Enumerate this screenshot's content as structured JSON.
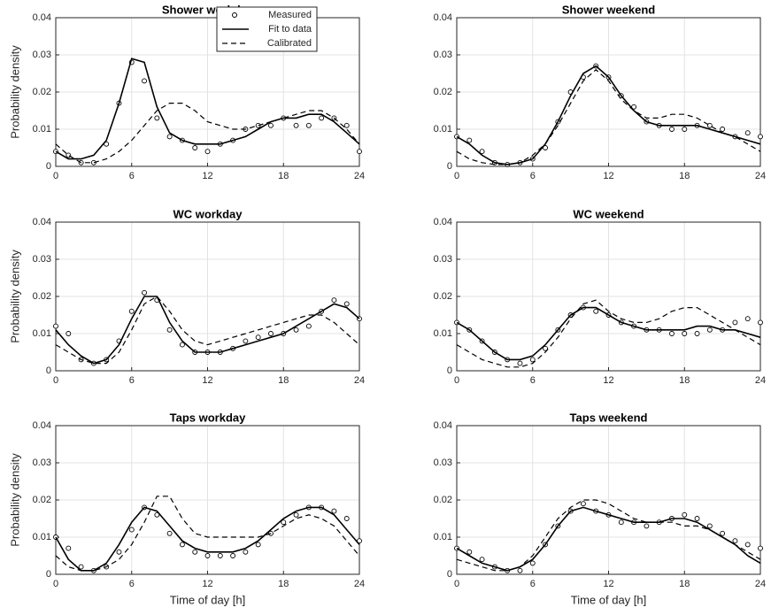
{
  "chart_data": [
    {
      "type": "line",
      "title": "Shower workday",
      "ylabel": "Probability density",
      "legend": "northeast",
      "grid": true,
      "x": [
        0,
        1,
        2,
        3,
        4,
        5,
        6,
        7,
        8,
        9,
        10,
        11,
        12,
        13,
        14,
        15,
        16,
        17,
        18,
        19,
        20,
        21,
        22,
        23,
        24
      ],
      "xlim": [
        0,
        24
      ],
      "xticks": [
        0,
        6,
        12,
        18,
        24
      ],
      "ylim": [
        0,
        0.04
      ],
      "yticks": [
        0,
        0.01,
        0.02,
        0.03,
        0.04
      ],
      "series": [
        {
          "name": "Measured",
          "color": "#000000",
          "style": "markers",
          "values": [
            0.004,
            0.003,
            0.001,
            0.001,
            0.006,
            0.017,
            0.028,
            0.023,
            0.013,
            0.008,
            0.007,
            0.005,
            0.004,
            0.006,
            0.007,
            0.01,
            0.011,
            0.011,
            0.013,
            0.011,
            0.011,
            0.013,
            0.013,
            0.011,
            0.004
          ]
        },
        {
          "name": "Fit to data",
          "color": "#000000",
          "style": "solid",
          "values": [
            0.004,
            0.002,
            0.002,
            0.003,
            0.007,
            0.017,
            0.029,
            0.028,
            0.016,
            0.009,
            0.007,
            0.006,
            0.006,
            0.006,
            0.007,
            0.008,
            0.01,
            0.012,
            0.013,
            0.013,
            0.014,
            0.014,
            0.012,
            0.009,
            0.006
          ]
        },
        {
          "name": "Calibrated",
          "color": "#000000",
          "style": "dashed",
          "values": [
            0.006,
            0.003,
            0.001,
            0.001,
            0.002,
            0.004,
            0.007,
            0.011,
            0.015,
            0.017,
            0.017,
            0.015,
            0.012,
            0.011,
            0.01,
            0.01,
            0.011,
            0.012,
            0.013,
            0.014,
            0.015,
            0.015,
            0.013,
            0.01,
            0.006
          ]
        }
      ]
    },
    {
      "type": "line",
      "title": "Shower weekend",
      "grid": true,
      "x": [
        0,
        1,
        2,
        3,
        4,
        5,
        6,
        7,
        8,
        9,
        10,
        11,
        12,
        13,
        14,
        15,
        16,
        17,
        18,
        19,
        20,
        21,
        22,
        23,
        24
      ],
      "xlim": [
        0,
        24
      ],
      "xticks": [
        0,
        6,
        12,
        18,
        24
      ],
      "ylim": [
        0,
        0.04
      ],
      "yticks": [
        0,
        0.01,
        0.02,
        0.03,
        0.04
      ],
      "series": [
        {
          "name": "Measured",
          "color": "#000000",
          "style": "markers",
          "values": [
            0.008,
            0.007,
            0.004,
            0.001,
            0.0005,
            0.001,
            0.002,
            0.005,
            0.012,
            0.02,
            0.024,
            0.027,
            0.024,
            0.019,
            0.016,
            0.012,
            0.011,
            0.01,
            0.01,
            0.011,
            0.011,
            0.01,
            0.008,
            0.009,
            0.008
          ]
        },
        {
          "name": "Fit to data",
          "color": "#000000",
          "style": "solid",
          "values": [
            0.008,
            0.006,
            0.003,
            0.001,
            0.0005,
            0.001,
            0.002,
            0.006,
            0.012,
            0.019,
            0.025,
            0.027,
            0.024,
            0.019,
            0.015,
            0.012,
            0.011,
            0.011,
            0.011,
            0.011,
            0.01,
            0.009,
            0.008,
            0.007,
            0.006
          ]
        },
        {
          "name": "Calibrated",
          "color": "#000000",
          "style": "dashed",
          "values": [
            0.004,
            0.002,
            0.001,
            0.0005,
            0.0005,
            0.001,
            0.003,
            0.006,
            0.011,
            0.017,
            0.023,
            0.026,
            0.023,
            0.018,
            0.015,
            0.013,
            0.013,
            0.014,
            0.014,
            0.013,
            0.011,
            0.009,
            0.008,
            0.006,
            0.004
          ]
        }
      ]
    },
    {
      "type": "line",
      "title": "WC workday",
      "ylabel": "Probability density",
      "grid": true,
      "x": [
        0,
        1,
        2,
        3,
        4,
        5,
        6,
        7,
        8,
        9,
        10,
        11,
        12,
        13,
        14,
        15,
        16,
        17,
        18,
        19,
        20,
        21,
        22,
        23,
        24
      ],
      "xlim": [
        0,
        24
      ],
      "xticks": [
        0,
        6,
        12,
        18,
        24
      ],
      "ylim": [
        0,
        0.04
      ],
      "yticks": [
        0,
        0.01,
        0.02,
        0.03,
        0.04
      ],
      "series": [
        {
          "name": "Measured",
          "color": "#000000",
          "style": "markers",
          "values": [
            0.012,
            0.01,
            0.003,
            0.002,
            0.003,
            0.008,
            0.016,
            0.021,
            0.019,
            0.011,
            0.007,
            0.005,
            0.005,
            0.005,
            0.006,
            0.008,
            0.009,
            0.01,
            0.01,
            0.011,
            0.012,
            0.016,
            0.019,
            0.018,
            0.014
          ]
        },
        {
          "name": "Fit to data",
          "color": "#000000",
          "style": "solid",
          "values": [
            0.011,
            0.007,
            0.004,
            0.002,
            0.003,
            0.007,
            0.014,
            0.02,
            0.02,
            0.013,
            0.008,
            0.005,
            0.005,
            0.005,
            0.006,
            0.007,
            0.008,
            0.009,
            0.01,
            0.012,
            0.014,
            0.016,
            0.018,
            0.017,
            0.014
          ]
        },
        {
          "name": "Calibrated",
          "color": "#000000",
          "style": "dashed",
          "values": [
            0.007,
            0.005,
            0.003,
            0.002,
            0.002,
            0.005,
            0.011,
            0.018,
            0.02,
            0.016,
            0.011,
            0.008,
            0.007,
            0.008,
            0.009,
            0.01,
            0.011,
            0.012,
            0.013,
            0.014,
            0.015,
            0.015,
            0.013,
            0.01,
            0.007
          ]
        }
      ]
    },
    {
      "type": "line",
      "title": "WC weekend",
      "grid": true,
      "x": [
        0,
        1,
        2,
        3,
        4,
        5,
        6,
        7,
        8,
        9,
        10,
        11,
        12,
        13,
        14,
        15,
        16,
        17,
        18,
        19,
        20,
        21,
        22,
        23,
        24
      ],
      "xlim": [
        0,
        24
      ],
      "xticks": [
        0,
        6,
        12,
        18,
        24
      ],
      "ylim": [
        0,
        0.04
      ],
      "yticks": [
        0,
        0.01,
        0.02,
        0.03,
        0.04
      ],
      "series": [
        {
          "name": "Measured",
          "color": "#000000",
          "style": "markers",
          "values": [
            0.013,
            0.011,
            0.008,
            0.005,
            0.003,
            0.002,
            0.003,
            0.006,
            0.011,
            0.015,
            0.017,
            0.016,
            0.015,
            0.013,
            0.012,
            0.011,
            0.011,
            0.01,
            0.01,
            0.01,
            0.011,
            0.011,
            0.013,
            0.014,
            0.013
          ]
        },
        {
          "name": "Fit to data",
          "color": "#000000",
          "style": "solid",
          "values": [
            0.013,
            0.011,
            0.008,
            0.005,
            0.003,
            0.003,
            0.004,
            0.007,
            0.011,
            0.015,
            0.017,
            0.017,
            0.015,
            0.013,
            0.012,
            0.011,
            0.011,
            0.011,
            0.011,
            0.012,
            0.012,
            0.011,
            0.011,
            0.01,
            0.009
          ]
        },
        {
          "name": "Calibrated",
          "color": "#000000",
          "style": "dashed",
          "values": [
            0.007,
            0.005,
            0.003,
            0.002,
            0.001,
            0.001,
            0.002,
            0.005,
            0.009,
            0.014,
            0.018,
            0.019,
            0.016,
            0.014,
            0.013,
            0.013,
            0.014,
            0.016,
            0.017,
            0.017,
            0.015,
            0.013,
            0.011,
            0.009,
            0.007
          ]
        }
      ]
    },
    {
      "type": "line",
      "title": "Taps workday",
      "ylabel": "Probability density",
      "xlabel": "Time of day [h]",
      "grid": true,
      "x": [
        0,
        1,
        2,
        3,
        4,
        5,
        6,
        7,
        8,
        9,
        10,
        11,
        12,
        13,
        14,
        15,
        16,
        17,
        18,
        19,
        20,
        21,
        22,
        23,
        24
      ],
      "xlim": [
        0,
        24
      ],
      "xticks": [
        0,
        6,
        12,
        18,
        24
      ],
      "ylim": [
        0,
        0.04
      ],
      "yticks": [
        0,
        0.01,
        0.02,
        0.03,
        0.04
      ],
      "series": [
        {
          "name": "Measured",
          "color": "#000000",
          "style": "markers",
          "values": [
            0.01,
            0.007,
            0.002,
            0.001,
            0.002,
            0.006,
            0.012,
            0.018,
            0.016,
            0.011,
            0.008,
            0.006,
            0.005,
            0.005,
            0.005,
            0.006,
            0.008,
            0.011,
            0.014,
            0.016,
            0.018,
            0.018,
            0.017,
            0.015,
            0.009
          ]
        },
        {
          "name": "Fit to data",
          "color": "#000000",
          "style": "solid",
          "values": [
            0.01,
            0.004,
            0.001,
            0.001,
            0.003,
            0.008,
            0.014,
            0.018,
            0.017,
            0.013,
            0.009,
            0.007,
            0.006,
            0.006,
            0.006,
            0.007,
            0.009,
            0.012,
            0.015,
            0.017,
            0.018,
            0.018,
            0.016,
            0.012,
            0.008
          ]
        },
        {
          "name": "Calibrated",
          "color": "#000000",
          "style": "dashed",
          "values": [
            0.005,
            0.002,
            0.001,
            0.001,
            0.002,
            0.004,
            0.008,
            0.014,
            0.021,
            0.021,
            0.015,
            0.011,
            0.01,
            0.01,
            0.01,
            0.01,
            0.01,
            0.011,
            0.013,
            0.015,
            0.016,
            0.015,
            0.013,
            0.009,
            0.005
          ]
        }
      ]
    },
    {
      "type": "line",
      "title": "Taps weekend",
      "xlabel": "Time of day [h]",
      "grid": true,
      "x": [
        0,
        1,
        2,
        3,
        4,
        5,
        6,
        7,
        8,
        9,
        10,
        11,
        12,
        13,
        14,
        15,
        16,
        17,
        18,
        19,
        20,
        21,
        22,
        23,
        24
      ],
      "xlim": [
        0,
        24
      ],
      "xticks": [
        0,
        6,
        12,
        18,
        24
      ],
      "ylim": [
        0,
        0.04
      ],
      "yticks": [
        0,
        0.01,
        0.02,
        0.03,
        0.04
      ],
      "series": [
        {
          "name": "Measured",
          "color": "#000000",
          "style": "markers",
          "values": [
            0.007,
            0.006,
            0.004,
            0.002,
            0.001,
            0.001,
            0.003,
            0.008,
            0.013,
            0.017,
            0.019,
            0.017,
            0.016,
            0.014,
            0.014,
            0.013,
            0.014,
            0.015,
            0.016,
            0.015,
            0.013,
            0.011,
            0.009,
            0.008,
            0.007
          ]
        },
        {
          "name": "Fit to data",
          "color": "#000000",
          "style": "solid",
          "values": [
            0.007,
            0.005,
            0.003,
            0.002,
            0.001,
            0.002,
            0.004,
            0.008,
            0.013,
            0.017,
            0.018,
            0.017,
            0.016,
            0.015,
            0.014,
            0.014,
            0.014,
            0.015,
            0.015,
            0.014,
            0.012,
            0.01,
            0.008,
            0.005,
            0.003
          ]
        },
        {
          "name": "Calibrated",
          "color": "#000000",
          "style": "dashed",
          "values": [
            0.004,
            0.003,
            0.002,
            0.001,
            0.001,
            0.002,
            0.005,
            0.01,
            0.015,
            0.018,
            0.02,
            0.02,
            0.019,
            0.017,
            0.015,
            0.014,
            0.014,
            0.014,
            0.013,
            0.013,
            0.012,
            0.01,
            0.008,
            0.006,
            0.004
          ]
        }
      ]
    }
  ]
}
